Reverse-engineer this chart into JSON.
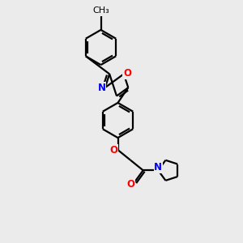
{
  "bg_color": "#ebebeb",
  "bond_color": "#000000",
  "N_color": "#0000ff",
  "O_color": "#ff0000",
  "line_width": 1.6,
  "font_size": 8.5,
  "fig_w": 3.0,
  "fig_h": 3.0,
  "dpi": 100,
  "xlim": [
    0,
    10
  ],
  "ylim": [
    0,
    10
  ]
}
